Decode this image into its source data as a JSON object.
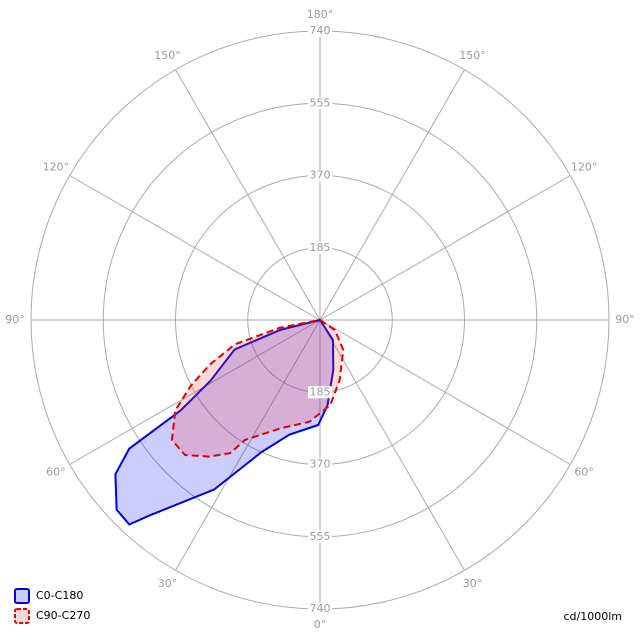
{
  "chart_data": {
    "type": "polar",
    "unit": "cd/1000lm",
    "rlim": [
      0,
      740
    ],
    "rticks": [
      185,
      370,
      555,
      740
    ],
    "angle_ticks": [
      {
        "value": 0,
        "label": "0°"
      },
      {
        "value": 30,
        "label": "30°"
      },
      {
        "value": 60,
        "label": "60°"
      },
      {
        "value": 90,
        "label": "90°"
      },
      {
        "value": 120,
        "label": "120°"
      },
      {
        "value": 150,
        "label": "150°"
      },
      {
        "value": 180,
        "label": "180°"
      },
      {
        "value": -150,
        "label": "150°"
      },
      {
        "value": -120,
        "label": "120°"
      },
      {
        "value": -90,
        "label": "90°"
      },
      {
        "value": -60,
        "label": "60°"
      },
      {
        "value": -30,
        "label": "30°"
      }
    ],
    "grid": true,
    "legend": "bottom-left",
    "series": [
      {
        "name": "C0-C180",
        "color": "#0000dd",
        "fill": "rgba(0,0,255,0.2)",
        "line_style": "solid",
        "angles": [
          -60,
          -33,
          -15,
          -5,
          1,
          15,
          24,
          32,
          41,
          43,
          47,
          53,
          56,
          57,
          61,
          71,
          76,
          90
        ],
        "values": [
          0,
          61,
          132,
          219,
          269,
          304,
          371,
          512,
          662,
          716,
          712,
          656,
          589,
          426,
          321,
          231,
          105,
          0
        ]
      },
      {
        "name": "C90-C270",
        "color": "#dd0000",
        "fill": "rgba(255,60,60,0.2)",
        "line_style": "dashed",
        "angles": [
          -70,
          -56,
          -38,
          -18,
          -7,
          6,
          20,
          32,
          34,
          39,
          45,
          51,
          58,
          63,
          68,
          74,
          79,
          90
        ],
        "values": [
          0,
          46,
          97,
          162,
          219,
          262,
          295,
          362,
          411,
          450,
          489,
          488,
          437,
          372,
          304,
          227,
          104,
          0
        ]
      }
    ]
  }
}
